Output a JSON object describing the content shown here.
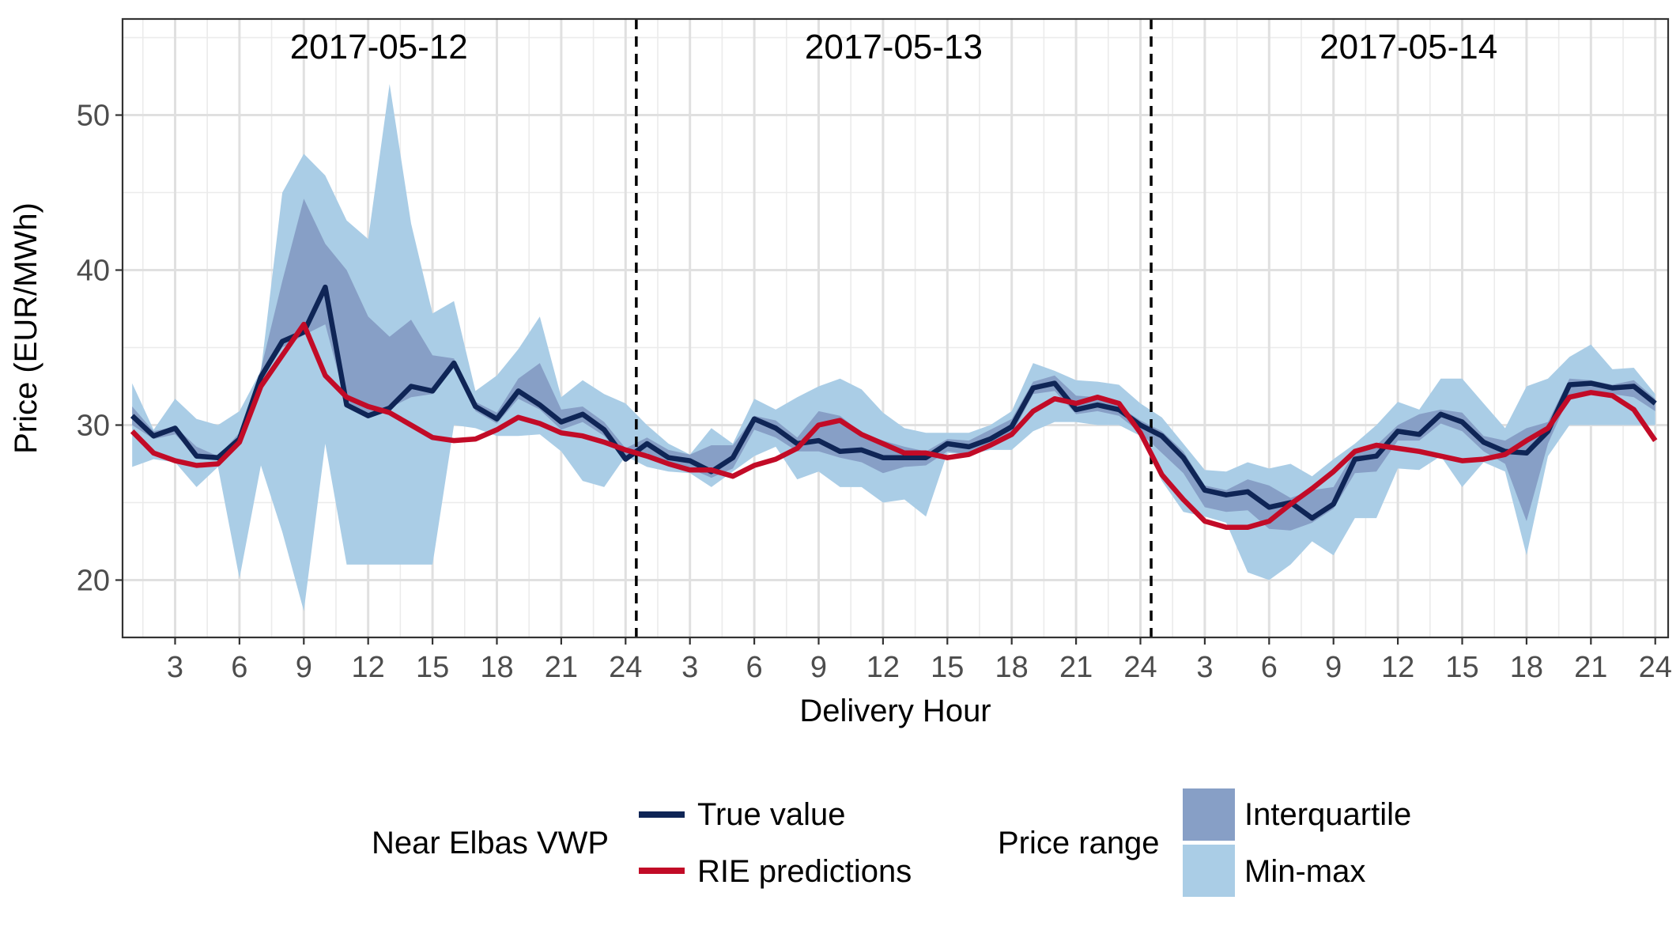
{
  "chart_data": {
    "type": "line",
    "xlabel": "Delivery Hour",
    "ylabel": "Price (EUR/MWh)",
    "ylim": [
      16.3,
      56.2
    ],
    "x_range_hours": [
      0.55,
      72.6
    ],
    "yticks": [
      20,
      30,
      40,
      50
    ],
    "xticks": [
      3,
      6,
      9,
      12,
      15,
      18,
      21,
      24,
      27,
      30,
      33,
      36,
      39,
      42,
      45,
      48,
      51,
      54,
      57,
      60,
      63,
      66,
      69,
      72
    ],
    "xtick_labels": [
      "3",
      "6",
      "9",
      "12",
      "15",
      "18",
      "21",
      "24",
      "3",
      "6",
      "9",
      "12",
      "15",
      "18",
      "21",
      "24",
      "3",
      "6",
      "9",
      "12",
      "15",
      "18",
      "21",
      "24"
    ],
    "grid": true,
    "day_separators": [
      24.5,
      48.5
    ],
    "days": [
      {
        "label": "2017-05-12",
        "center_hour": 12.5
      },
      {
        "label": "2017-05-13",
        "center_hour": 36.5
      },
      {
        "label": "2017-05-14",
        "center_hour": 60.5
      }
    ],
    "hours": [
      1,
      2,
      3,
      4,
      5,
      6,
      7,
      8,
      9,
      10,
      11,
      12,
      13,
      14,
      15,
      16,
      17,
      18,
      19,
      20,
      21,
      22,
      23,
      24,
      25,
      26,
      27,
      28,
      29,
      30,
      31,
      32,
      33,
      34,
      35,
      36,
      37,
      38,
      39,
      40,
      41,
      42,
      43,
      44,
      45,
      46,
      47,
      48,
      49,
      50,
      51,
      52,
      53,
      54,
      55,
      56,
      57,
      58,
      59,
      60,
      61,
      62,
      63,
      64,
      65,
      66,
      67,
      68,
      69,
      70,
      71,
      72
    ],
    "series": [
      {
        "name": "True value",
        "color": "#0f2556",
        "values": [
          30.6,
          29.3,
          29.8,
          28.0,
          27.9,
          29.1,
          33.1,
          35.4,
          36.0,
          38.9,
          31.3,
          30.6,
          31.1,
          32.5,
          32.2,
          34.0,
          31.2,
          30.4,
          32.2,
          31.3,
          30.2,
          30.7,
          29.7,
          27.8,
          28.8,
          27.9,
          27.7,
          27.0,
          27.9,
          30.4,
          29.8,
          28.8,
          29.0,
          28.3,
          28.4,
          27.9,
          27.9,
          27.9,
          28.8,
          28.6,
          29.1,
          29.9,
          32.4,
          32.7,
          31.0,
          31.3,
          31.0,
          30.0,
          29.3,
          27.9,
          25.8,
          25.5,
          25.7,
          24.7,
          25.0,
          24.0,
          24.9,
          27.8,
          28.0,
          29.6,
          29.4,
          30.7,
          30.2,
          28.9,
          28.3,
          28.2,
          29.6,
          32.6,
          32.7,
          32.4,
          32.5,
          31.4
        ]
      },
      {
        "name": "RIE predictions",
        "color": "#c20b27",
        "values": [
          29.6,
          28.2,
          27.7,
          27.4,
          27.5,
          28.9,
          32.5,
          34.5,
          36.5,
          33.2,
          31.8,
          31.2,
          30.8,
          30.0,
          29.2,
          29.0,
          29.1,
          29.7,
          30.5,
          30.1,
          29.5,
          29.3,
          28.9,
          28.4,
          28.0,
          27.5,
          27.1,
          27.1,
          26.7,
          27.4,
          27.8,
          28.5,
          30.0,
          30.3,
          29.4,
          28.8,
          28.2,
          28.2,
          27.9,
          28.1,
          28.7,
          29.4,
          30.9,
          31.7,
          31.4,
          31.8,
          31.4,
          29.5,
          26.8,
          25.2,
          23.8,
          23.4,
          23.4,
          23.8,
          24.9,
          25.9,
          27.0,
          28.3,
          28.7,
          28.5,
          28.3,
          28.0,
          27.7,
          27.8,
          28.1,
          29.0,
          29.8,
          31.8,
          32.1,
          31.9,
          31.0,
          29.0
        ]
      }
    ],
    "ranges": [
      {
        "name": "Interquartile",
        "color": "#879fc6",
        "low": [
          30.0,
          29.1,
          29.4,
          28.0,
          27.9,
          29.0,
          32.9,
          35.0,
          35.8,
          36.5,
          31.3,
          30.6,
          31.1,
          31.8,
          32.0,
          33.7,
          30.9,
          30.1,
          31.7,
          31.0,
          29.7,
          30.2,
          29.3,
          27.8,
          28.2,
          27.4,
          27.2,
          26.6,
          27.2,
          29.7,
          29.2,
          28.3,
          28.3,
          27.9,
          27.6,
          26.9,
          27.3,
          27.4,
          28.3,
          28.1,
          28.8,
          29.4,
          32.0,
          32.2,
          30.7,
          30.9,
          30.6,
          29.5,
          28.2,
          26.9,
          24.7,
          24.4,
          24.5,
          23.3,
          23.2,
          23.7,
          24.6,
          26.9,
          27.0,
          29.0,
          29.0,
          30.1,
          29.6,
          28.3,
          27.5,
          23.8,
          28.8,
          31.9,
          32.2,
          32.0,
          31.8,
          30.9
        ],
        "high": [
          31.2,
          29.6,
          29.9,
          28.6,
          28.0,
          29.5,
          33.6,
          39.3,
          44.6,
          41.7,
          40.0,
          37.0,
          35.7,
          36.8,
          34.5,
          34.3,
          31.5,
          30.8,
          33.0,
          34.0,
          31.0,
          31.2,
          30.2,
          28.5,
          29.2,
          28.4,
          28.1,
          28.7,
          28.7,
          30.6,
          30.3,
          29.2,
          30.9,
          30.6,
          29.5,
          29.0,
          28.6,
          28.3,
          29.1,
          29.0,
          29.7,
          30.4,
          32.8,
          33.2,
          31.9,
          31.8,
          31.2,
          30.3,
          29.6,
          28.3,
          26.1,
          25.8,
          26.5,
          26.1,
          25.3,
          25.8,
          26.0,
          28.3,
          28.7,
          30.0,
          30.7,
          31.0,
          30.8,
          29.3,
          29.0,
          29.8,
          30.2,
          33.0,
          32.9,
          32.6,
          32.9,
          31.7
        ]
      },
      {
        "name": "Min-max",
        "color": "#aacde6",
        "low": [
          27.3,
          27.8,
          27.6,
          26.0,
          27.3,
          20.1,
          27.4,
          23.1,
          18.0,
          28.8,
          21.0,
          21.0,
          21.0,
          21.0,
          21.0,
          30.0,
          29.8,
          29.3,
          29.3,
          29.4,
          28.3,
          26.4,
          26.0,
          28.0,
          27.3,
          27.0,
          26.9,
          26.0,
          27.0,
          28.0,
          28.6,
          26.5,
          27.0,
          26.0,
          26.0,
          25.0,
          25.2,
          24.1,
          28.2,
          28.1,
          28.4,
          28.4,
          29.6,
          30.2,
          30.2,
          30.0,
          30.0,
          29.3,
          26.4,
          24.4,
          24.1,
          23.7,
          20.5,
          20.0,
          21.0,
          22.5,
          21.6,
          24.0,
          24.0,
          27.2,
          27.1,
          28.0,
          26.0,
          27.6,
          27.0,
          21.6,
          28.0,
          30.0,
          30.0,
          30.0,
          30.0,
          30.0
        ],
        "high": [
          32.7,
          29.7,
          31.7,
          30.4,
          30.0,
          30.9,
          33.5,
          45.0,
          47.5,
          46.1,
          43.2,
          42.0,
          52.0,
          43.0,
          37.2,
          38.0,
          32.2,
          33.2,
          34.9,
          37.0,
          31.8,
          32.9,
          32.0,
          31.4,
          30.0,
          28.8,
          28.1,
          29.8,
          28.8,
          31.7,
          31.0,
          31.8,
          32.5,
          33.0,
          32.3,
          30.8,
          29.8,
          29.5,
          29.5,
          29.5,
          30.0,
          30.9,
          34.0,
          33.5,
          32.9,
          32.8,
          32.6,
          31.4,
          30.5,
          28.8,
          27.1,
          27.0,
          27.6,
          27.2,
          27.5,
          26.7,
          27.8,
          28.8,
          30.0,
          31.5,
          31.0,
          33.0,
          33.0,
          31.4,
          29.8,
          32.5,
          33.0,
          34.4,
          35.2,
          33.6,
          33.7,
          32.0
        ]
      }
    ],
    "legend": {
      "placement": "bottom",
      "line_title": "Near Elbas VWP",
      "line_items": [
        "True value",
        "RIE predictions"
      ],
      "range_title": "Price range",
      "range_items": [
        "Interquartile",
        "Min-max"
      ]
    }
  }
}
